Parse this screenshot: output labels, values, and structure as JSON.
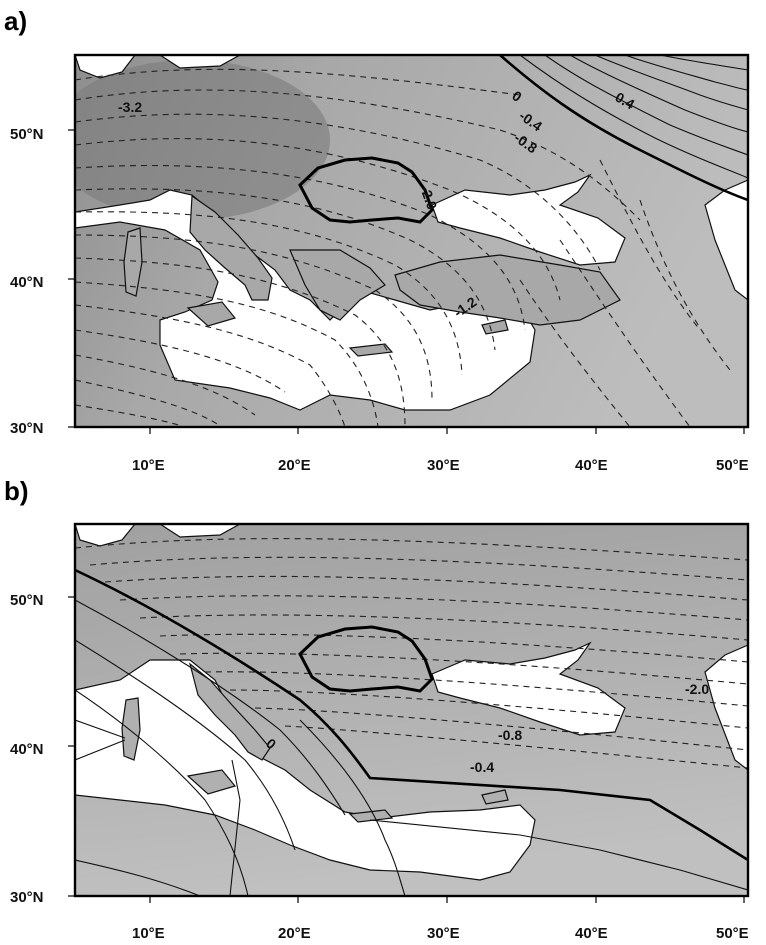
{
  "panels": [
    {
      "id": "a",
      "label": "a)",
      "lat_ticks": [
        "50°N",
        "40°N",
        "30°N"
      ],
      "lon_ticks": [
        "10°E",
        "20°E",
        "30°E",
        "40°E",
        "50°E"
      ],
      "contour_labels": [
        "-3.2",
        "0",
        "-0.4",
        "-0.8",
        "0.4",
        "-2.0",
        "-1.2"
      ]
    },
    {
      "id": "b",
      "label": "b)",
      "lat_ticks": [
        "50°N",
        "40°N",
        "30°N"
      ],
      "lon_ticks": [
        "10°E",
        "20°E",
        "30°E",
        "40°E",
        "50°E"
      ],
      "contour_labels": [
        "0",
        "-0.8",
        "-0.4",
        "-2.0"
      ]
    }
  ]
}
